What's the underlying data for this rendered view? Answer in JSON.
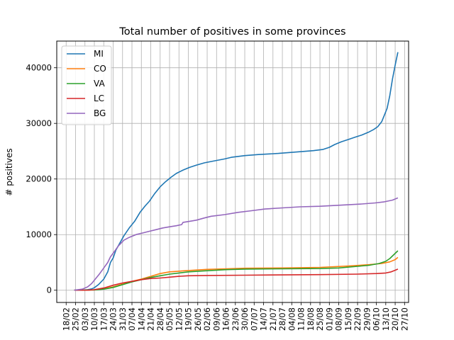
{
  "chart_data": {
    "type": "line",
    "title": "Total number of positives in some provinces",
    "xlabel": "",
    "ylabel": "# positives",
    "x_start": "2020-02-24",
    "x_end": "2020-10-23",
    "xlim": [
      "2020-02-11",
      "2020-10-30"
    ],
    "ylim": [
      -2200,
      44800
    ],
    "x_ticks": [
      "18/02",
      "25/02",
      "03/03",
      "10/03",
      "17/03",
      "24/03",
      "31/03",
      "07/04",
      "14/04",
      "21/04",
      "28/04",
      "05/05",
      "12/05",
      "19/05",
      "26/05",
      "02/06",
      "09/06",
      "16/06",
      "23/06",
      "30/06",
      "07/07",
      "14/07",
      "21/07",
      "28/07",
      "04/08",
      "11/08",
      "18/08",
      "25/08",
      "01/09",
      "08/09",
      "15/09",
      "22/09",
      "29/09",
      "06/10",
      "13/10",
      "20/10",
      "27/10"
    ],
    "y_ticks": [
      0,
      10000,
      20000,
      30000,
      40000
    ],
    "y_tick_labels": [
      "0",
      "10000",
      "20000",
      "30000",
      "40000"
    ],
    "grid": true,
    "legend_position": "top-left",
    "series": [
      {
        "name": "MI",
        "color": "#1f77b4",
        "points": [
          [
            "2020-02-24",
            0
          ],
          [
            "2020-03-01",
            20
          ],
          [
            "2020-03-05",
            100
          ],
          [
            "2020-03-08",
            250
          ],
          [
            "2020-03-10",
            450
          ],
          [
            "2020-03-13",
            1000
          ],
          [
            "2020-03-17",
            2000
          ],
          [
            "2020-03-20",
            3300
          ],
          [
            "2020-03-22",
            5000
          ],
          [
            "2020-03-24",
            5800
          ],
          [
            "2020-03-26",
            7200
          ],
          [
            "2020-03-29",
            8500
          ],
          [
            "2020-04-01",
            9800
          ],
          [
            "2020-04-05",
            11200
          ],
          [
            "2020-04-09",
            12400
          ],
          [
            "2020-04-13",
            14000
          ],
          [
            "2020-04-17",
            15200
          ],
          [
            "2020-04-20",
            16000
          ],
          [
            "2020-04-24",
            17400
          ],
          [
            "2020-04-28",
            18600
          ],
          [
            "2020-05-02",
            19500
          ],
          [
            "2020-05-06",
            20300
          ],
          [
            "2020-05-10",
            21000
          ],
          [
            "2020-05-15",
            21600
          ],
          [
            "2020-05-20",
            22100
          ],
          [
            "2020-05-25",
            22500
          ],
          [
            "2020-05-31",
            22900
          ],
          [
            "2020-06-06",
            23200
          ],
          [
            "2020-06-15",
            23600
          ],
          [
            "2020-06-20",
            23900
          ],
          [
            "2020-06-30",
            24200
          ],
          [
            "2020-07-10",
            24400
          ],
          [
            "2020-07-25",
            24600
          ],
          [
            "2020-08-10",
            24900
          ],
          [
            "2020-08-20",
            25100
          ],
          [
            "2020-08-27",
            25300
          ],
          [
            "2020-09-01",
            25700
          ],
          [
            "2020-09-05",
            26200
          ],
          [
            "2020-09-10",
            26700
          ],
          [
            "2020-09-15",
            27100
          ],
          [
            "2020-09-20",
            27500
          ],
          [
            "2020-09-25",
            27900
          ],
          [
            "2020-09-30",
            28400
          ],
          [
            "2020-10-04",
            28900
          ],
          [
            "2020-10-07",
            29400
          ],
          [
            "2020-10-10",
            30300
          ],
          [
            "2020-10-12",
            31500
          ],
          [
            "2020-10-14",
            32700
          ],
          [
            "2020-10-16",
            35000
          ],
          [
            "2020-10-18",
            38000
          ],
          [
            "2020-10-20",
            40500
          ],
          [
            "2020-10-22",
            42800
          ]
        ]
      },
      {
        "name": "CO",
        "color": "#ff7f0e",
        "points": [
          [
            "2020-02-24",
            0
          ],
          [
            "2020-03-05",
            10
          ],
          [
            "2020-03-10",
            60
          ],
          [
            "2020-03-17",
            250
          ],
          [
            "2020-03-24",
            600
          ],
          [
            "2020-03-31",
            1100
          ],
          [
            "2020-04-07",
            1600
          ],
          [
            "2020-04-14",
            2000
          ],
          [
            "2020-04-21",
            2500
          ],
          [
            "2020-04-28",
            3000
          ],
          [
            "2020-05-05",
            3300
          ],
          [
            "2020-05-19",
            3550
          ],
          [
            "2020-06-02",
            3750
          ],
          [
            "2020-06-16",
            3850
          ],
          [
            "2020-06-30",
            3950
          ],
          [
            "2020-07-28",
            4000
          ],
          [
            "2020-08-25",
            4100
          ],
          [
            "2020-09-15",
            4350
          ],
          [
            "2020-10-01",
            4600
          ],
          [
            "2020-10-10",
            4800
          ],
          [
            "2020-10-16",
            5100
          ],
          [
            "2020-10-20",
            5500
          ],
          [
            "2020-10-22",
            5900
          ]
        ]
      },
      {
        "name": "VA",
        "color": "#2ca02c",
        "points": [
          [
            "2020-02-24",
            0
          ],
          [
            "2020-03-10",
            60
          ],
          [
            "2020-03-17",
            200
          ],
          [
            "2020-03-24",
            500
          ],
          [
            "2020-03-31",
            1000
          ],
          [
            "2020-04-07",
            1500
          ],
          [
            "2020-04-14",
            1900
          ],
          [
            "2020-04-21",
            2300
          ],
          [
            "2020-04-28",
            2600
          ],
          [
            "2020-05-05",
            2900
          ],
          [
            "2020-05-12",
            3100
          ],
          [
            "2020-05-19",
            3300
          ],
          [
            "2020-06-02",
            3500
          ],
          [
            "2020-06-16",
            3700
          ],
          [
            "2020-06-30",
            3800
          ],
          [
            "2020-07-28",
            3850
          ],
          [
            "2020-08-25",
            3900
          ],
          [
            "2020-09-08",
            4000
          ],
          [
            "2020-09-22",
            4300
          ],
          [
            "2020-10-01",
            4500
          ],
          [
            "2020-10-08",
            4800
          ],
          [
            "2020-10-13",
            5200
          ],
          [
            "2020-10-16",
            5700
          ],
          [
            "2020-10-19",
            6400
          ],
          [
            "2020-10-22",
            7100
          ]
        ]
      },
      {
        "name": "LC",
        "color": "#d62728",
        "points": [
          [
            "2020-02-24",
            0
          ],
          [
            "2020-03-05",
            20
          ],
          [
            "2020-03-10",
            100
          ],
          [
            "2020-03-17",
            400
          ],
          [
            "2020-03-24",
            900
          ],
          [
            "2020-03-31",
            1300
          ],
          [
            "2020-04-07",
            1600
          ],
          [
            "2020-04-14",
            1900
          ],
          [
            "2020-04-21",
            2100
          ],
          [
            "2020-04-28",
            2200
          ],
          [
            "2020-05-05",
            2350
          ],
          [
            "2020-05-12",
            2500
          ],
          [
            "2020-05-19",
            2600
          ],
          [
            "2020-06-02",
            2650
          ],
          [
            "2020-06-30",
            2700
          ],
          [
            "2020-07-28",
            2750
          ],
          [
            "2020-08-25",
            2800
          ],
          [
            "2020-09-22",
            2900
          ],
          [
            "2020-10-06",
            3000
          ],
          [
            "2020-10-13",
            3100
          ],
          [
            "2020-10-17",
            3300
          ],
          [
            "2020-10-20",
            3600
          ],
          [
            "2020-10-22",
            3800
          ]
        ]
      },
      {
        "name": "BG",
        "color": "#9467bd",
        "points": [
          [
            "2020-02-24",
            0
          ],
          [
            "2020-03-01",
            200
          ],
          [
            "2020-03-05",
            600
          ],
          [
            "2020-03-08",
            1200
          ],
          [
            "2020-03-10",
            1800
          ],
          [
            "2020-03-14",
            3000
          ],
          [
            "2020-03-17",
            4000
          ],
          [
            "2020-03-20",
            5000
          ],
          [
            "2020-03-22",
            6000
          ],
          [
            "2020-03-25",
            7000
          ],
          [
            "2020-03-28",
            8000
          ],
          [
            "2020-04-01",
            9000
          ],
          [
            "2020-04-05",
            9500
          ],
          [
            "2020-04-10",
            10000
          ],
          [
            "2020-04-15",
            10300
          ],
          [
            "2020-04-20",
            10600
          ],
          [
            "2020-04-25",
            10900
          ],
          [
            "2020-04-30",
            11200
          ],
          [
            "2020-05-05",
            11400
          ],
          [
            "2020-05-10",
            11600
          ],
          [
            "2020-05-14",
            11800
          ],
          [
            "2020-05-15",
            12200
          ],
          [
            "2020-05-20",
            12400
          ],
          [
            "2020-05-25",
            12600
          ],
          [
            "2020-05-31",
            13000
          ],
          [
            "2020-06-05",
            13300
          ],
          [
            "2020-06-15",
            13600
          ],
          [
            "2020-06-25",
            14000
          ],
          [
            "2020-07-05",
            14300
          ],
          [
            "2020-07-15",
            14600
          ],
          [
            "2020-07-28",
            14800
          ],
          [
            "2020-08-10",
            15000
          ],
          [
            "2020-08-25",
            15100
          ],
          [
            "2020-09-10",
            15300
          ],
          [
            "2020-09-25",
            15500
          ],
          [
            "2020-10-05",
            15700
          ],
          [
            "2020-10-12",
            15900
          ],
          [
            "2020-10-18",
            16200
          ],
          [
            "2020-10-22",
            16600
          ]
        ]
      }
    ]
  }
}
